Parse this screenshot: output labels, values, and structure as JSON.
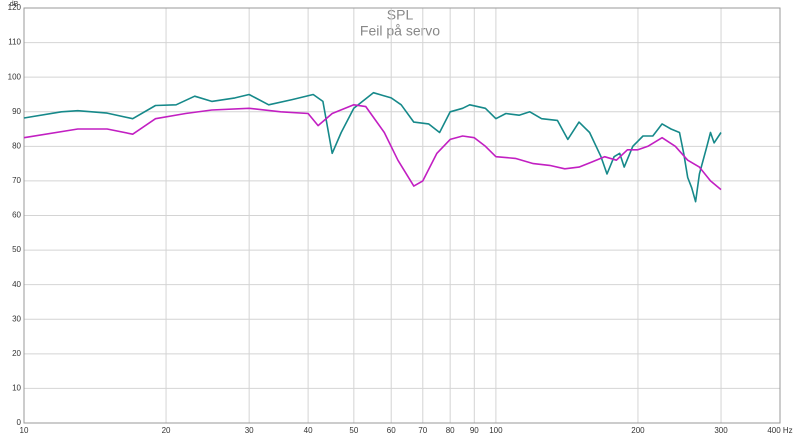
{
  "chart_data": {
    "type": "line",
    "title": "SPL",
    "subtitle": "Feil på servo",
    "y_label": "dB",
    "xscale": "log",
    "grid": true,
    "xlim": [
      10,
      400
    ],
    "xticks": [
      10,
      20,
      30,
      40,
      50,
      60,
      70,
      80,
      90,
      100,
      200,
      300,
      {
        "value": 400,
        "label": "400 Hz"
      }
    ],
    "ylim": [
      0,
      120
    ],
    "yticks": [
      0,
      10,
      20,
      30,
      40,
      50,
      60,
      70,
      80,
      90,
      100,
      110,
      120
    ],
    "series": [
      {
        "color": "#16898a",
        "x": [
          10,
          12,
          13,
          15,
          17,
          19,
          21,
          23,
          25,
          28,
          30,
          33,
          37,
          41,
          43,
          45,
          47,
          50,
          55,
          60,
          63,
          67,
          72,
          76,
          80,
          85,
          88,
          95,
          100,
          105,
          112,
          118,
          125,
          135,
          142,
          150,
          158,
          167,
          172,
          178,
          183,
          187,
          195,
          205,
          215,
          225,
          235,
          245,
          250,
          255,
          260,
          265,
          270,
          280,
          285,
          290,
          300
        ],
        "values": [
          88.2,
          90,
          90.3,
          89.6,
          88,
          91.8,
          92,
          94.5,
          93,
          94,
          95,
          92,
          93.5,
          95,
          93,
          78,
          84,
          91,
          95.5,
          94,
          92,
          87,
          86.5,
          84,
          90,
          91,
          92,
          91,
          88,
          89.5,
          89,
          90,
          88,
          87.5,
          82,
          87,
          84,
          77,
          72,
          77,
          78,
          74,
          80,
          83,
          83,
          86.5,
          85,
          84,
          78,
          71,
          68,
          64,
          72,
          80,
          84,
          81,
          84
        ]
      },
      {
        "color": "#c21fc2",
        "x": [
          10,
          13,
          15,
          17,
          19,
          22,
          25,
          30,
          35,
          40,
          42,
          45,
          50,
          53,
          58,
          62,
          67,
          70,
          75,
          80,
          85,
          90,
          95,
          100,
          110,
          120,
          130,
          140,
          150,
          160,
          170,
          180,
          190,
          200,
          210,
          225,
          240,
          255,
          270,
          285,
          300
        ],
        "values": [
          82.5,
          85,
          85,
          83.5,
          88,
          89.5,
          90.5,
          91,
          90,
          89.5,
          86,
          89.5,
          92,
          91.5,
          84,
          76,
          68.5,
          70,
          78,
          82,
          83,
          82.5,
          80,
          77,
          76.5,
          75,
          74.5,
          73.5,
          74,
          75.5,
          77,
          76,
          79,
          79,
          80,
          82.5,
          80,
          76,
          74,
          70,
          67.5
        ]
      }
    ]
  }
}
